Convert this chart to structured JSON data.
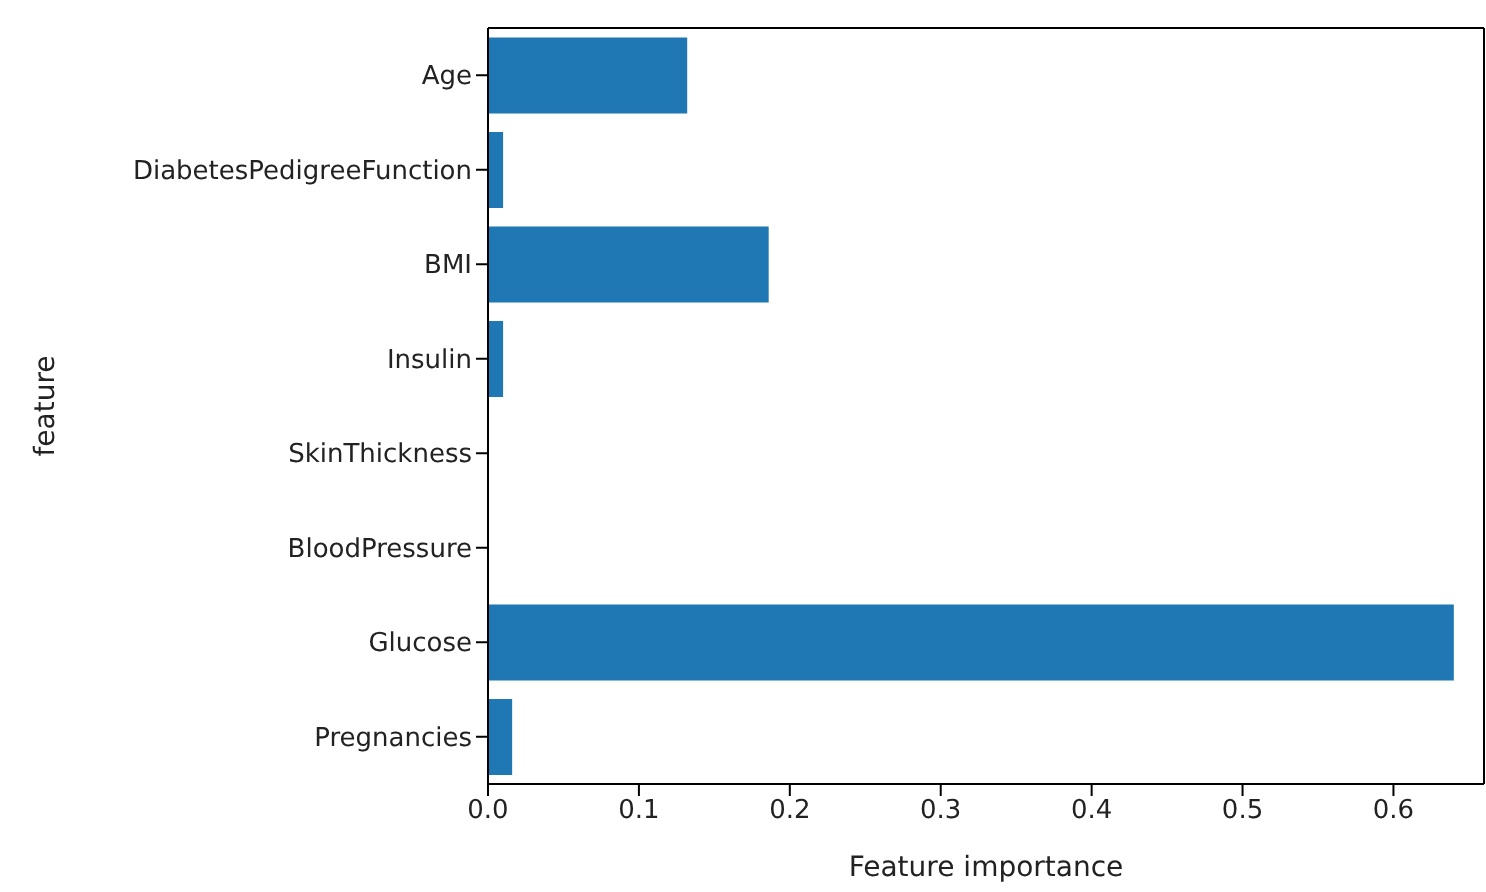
{
  "chart_data": {
    "type": "bar",
    "orientation": "horizontal",
    "xlabel": "Feature importance",
    "ylabel": "feature",
    "categories": [
      "Age",
      "DiabetesPedigreeFunction",
      "BMI",
      "Insulin",
      "SkinThickness",
      "BloodPressure",
      "Glucose",
      "Pregnancies"
    ],
    "values": [
      0.132,
      0.01,
      0.186,
      0.01,
      0,
      0,
      0.64,
      0.016
    ],
    "color": "#1f77b4",
    "xlim": [
      0,
      0.66
    ],
    "xticks": [
      {
        "value": 0,
        "label": "0.0"
      },
      0.1,
      0.2,
      0.3,
      0.4,
      0.5,
      0.6
    ],
    "grid": false,
    "legend": false
  }
}
